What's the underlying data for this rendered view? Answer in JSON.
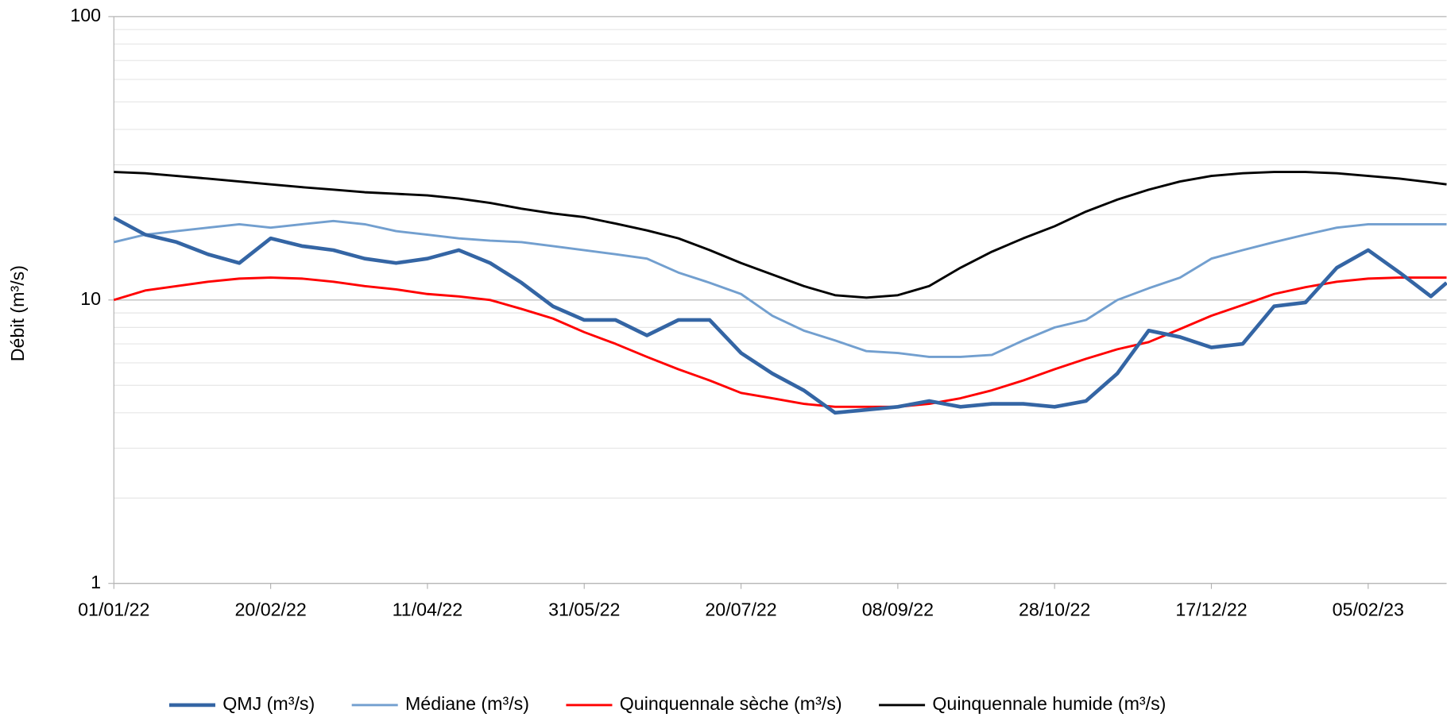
{
  "chart_data": {
    "type": "line",
    "y_label": "Débit (m³/s)",
    "x": [
      "2022-01-01",
      "2022-01-11",
      "2022-01-21",
      "2022-01-31",
      "2022-02-10",
      "2022-02-20",
      "2022-03-02",
      "2022-03-12",
      "2022-03-22",
      "2022-04-01",
      "2022-04-11",
      "2022-04-21",
      "2022-05-01",
      "2022-05-11",
      "2022-05-21",
      "2022-05-31",
      "2022-06-10",
      "2022-06-20",
      "2022-06-30",
      "2022-07-10",
      "2022-07-20",
      "2022-07-30",
      "2022-08-09",
      "2022-08-19",
      "2022-08-29",
      "2022-09-08",
      "2022-09-18",
      "2022-09-28",
      "2022-10-08",
      "2022-10-18",
      "2022-10-28",
      "2022-11-07",
      "2022-11-17",
      "2022-11-27",
      "2022-12-07",
      "2022-12-17",
      "2022-12-27",
      "2023-01-06",
      "2023-01-16",
      "2023-01-26",
      "2023-02-05",
      "2023-02-15",
      "2023-02-25",
      "2023-03-02"
    ],
    "xlim": [
      "2022-01-01",
      "2023-03-02"
    ],
    "xticks": [
      {
        "value": "2022-01-01",
        "label": "01/01/22"
      },
      {
        "value": "2022-02-20",
        "label": "20/02/22"
      },
      {
        "value": "2022-04-11",
        "label": "11/04/22"
      },
      {
        "value": "2022-05-31",
        "label": "31/05/22"
      },
      {
        "value": "2022-07-20",
        "label": "20/07/22"
      },
      {
        "value": "2022-09-08",
        "label": "08/09/22"
      },
      {
        "value": "2022-10-28",
        "label": "28/10/22"
      },
      {
        "value": "2022-12-17",
        "label": "17/12/22"
      },
      {
        "value": "2023-02-05",
        "label": "05/02/23"
      }
    ],
    "ylim": [
      1,
      100
    ],
    "yticks": [
      1,
      10,
      100
    ],
    "log_y": true,
    "grid": true,
    "minor_grid": true,
    "legend": "bottom",
    "series": [
      {
        "name": "QMJ (m³/s)",
        "color": "#3465a4",
        "width": 4,
        "values": [
          19.5,
          17,
          16,
          14.5,
          13.5,
          16.5,
          15.5,
          15,
          14,
          13.5,
          14,
          15,
          13.5,
          11.5,
          9.5,
          8.5,
          8.5,
          7.5,
          8.5,
          8.5,
          6.5,
          5.5,
          4.8,
          4.0,
          4.1,
          4.2,
          4.4,
          4.2,
          4.3,
          4.3,
          4.2,
          4.4,
          5.5,
          7.8,
          7.4,
          6.8,
          7.0,
          9.5,
          9.8,
          13,
          15,
          12.5,
          10.3,
          11.5
        ]
      },
      {
        "name": "Médiane (m³/s)",
        "color": "#729fcf",
        "width": 2.5,
        "values": [
          16,
          17,
          17.5,
          18,
          18.5,
          18,
          18.5,
          19,
          18.5,
          17.5,
          17,
          16.5,
          16.2,
          16,
          15.5,
          15,
          14.5,
          14,
          12.5,
          11.5,
          10.5,
          8.8,
          7.8,
          7.2,
          6.6,
          6.5,
          6.3,
          6.3,
          6.4,
          7.2,
          8,
          8.5,
          10,
          11,
          12,
          14,
          15,
          16,
          17,
          18,
          18.5,
          18.5,
          18.5,
          18.5
        ]
      },
      {
        "name": "Quinquennale sèche (m³/s)",
        "color": "#ff0000",
        "width": 2.5,
        "values": [
          10.0,
          10.8,
          11.2,
          11.6,
          11.9,
          12.0,
          11.9,
          11.6,
          11.2,
          10.9,
          10.5,
          10.3,
          10.0,
          9.3,
          8.6,
          7.7,
          7.0,
          6.3,
          5.7,
          5.2,
          4.7,
          4.5,
          4.3,
          4.2,
          4.2,
          4.2,
          4.3,
          4.5,
          4.8,
          5.2,
          5.7,
          6.2,
          6.7,
          7.1,
          7.9,
          8.8,
          9.6,
          10.5,
          11.1,
          11.6,
          11.9,
          12.0,
          12.0,
          12.0
        ]
      },
      {
        "name": "Quinquennale humide (m³/s)",
        "color": "#000000",
        "width": 2.5,
        "values": [
          28.3,
          28,
          27.4,
          26.8,
          26.2,
          25.6,
          25,
          24.5,
          24,
          23.7,
          23.4,
          22.8,
          22,
          21,
          20.2,
          19.6,
          18.6,
          17.6,
          16.5,
          15,
          13.5,
          12.3,
          11.2,
          10.4,
          10.2,
          10.4,
          11.2,
          13.0,
          14.8,
          16.5,
          18.2,
          20.5,
          22.6,
          24.5,
          26.2,
          27.4,
          28,
          28.3,
          28.3,
          28,
          27.4,
          26.8,
          26,
          25.6
        ]
      }
    ]
  }
}
